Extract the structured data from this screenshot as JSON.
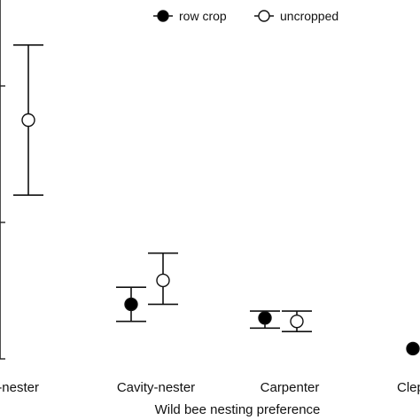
{
  "chart_data": {
    "type": "scatter",
    "subtype": "point-with-error-bars",
    "xlabel": "Wild bee nesting preference",
    "ylabel": "",
    "categories": [
      "Ground-nester",
      "Cavity-nester",
      "Carpenter",
      "Cleptoparasite"
    ],
    "tick_labels": [
      "-nester",
      "Cavity-nester",
      "Carpenter",
      "Clep"
    ],
    "ylim": [
      0,
      100
    ],
    "grid": false,
    "legend_position": "top-right",
    "series": [
      {
        "name": "row crop",
        "marker": "filled-circle",
        "color": "#000000",
        "points": [
          {
            "category": "Ground-nester",
            "value": null,
            "lower": null,
            "upper": null
          },
          {
            "category": "Cavity-nester",
            "value": 16,
            "lower": 11,
            "upper": 21
          },
          {
            "category": "Carpenter",
            "value": 12,
            "lower": 9,
            "upper": 14
          },
          {
            "category": "Cleptoparasite",
            "value": 3,
            "lower": 2.5,
            "upper": 3.5
          }
        ]
      },
      {
        "name": "uncropped",
        "marker": "open-circle",
        "color": "#ffffff",
        "points": [
          {
            "category": "Ground-nester",
            "value": 70,
            "lower": 48,
            "upper": 92
          },
          {
            "category": "Cavity-nester",
            "value": 23,
            "lower": 16,
            "upper": 31
          },
          {
            "category": "Carpenter",
            "value": 11,
            "lower": 8,
            "upper": 14
          },
          {
            "category": "Cleptoparasite",
            "value": null,
            "lower": null,
            "upper": null
          }
        ]
      }
    ]
  }
}
